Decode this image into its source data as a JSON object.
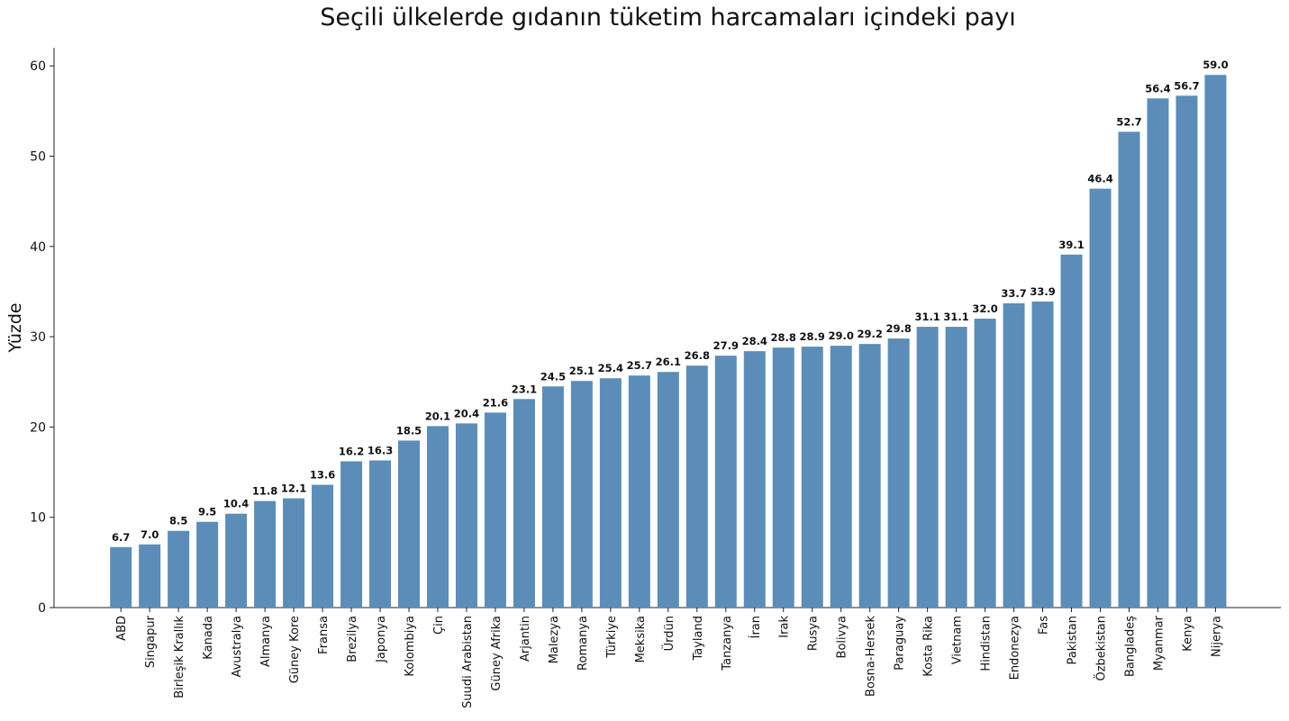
{
  "chart_data": {
    "type": "bar",
    "title": "Seçili ülkelerde gıdanın tüketim harcamaları içindeki payı",
    "xlabel": "",
    "ylabel": "Yüzde",
    "ylim": [
      0,
      62
    ],
    "yticks": [
      0,
      10,
      20,
      30,
      40,
      50,
      60
    ],
    "grid": false,
    "legend": "none",
    "bar_color": "#5b8db8",
    "categories": [
      "ABD",
      "Singapur",
      "Birleşik Krallık",
      "Kanada",
      "Avustralya",
      "Almanya",
      "Güney Kore",
      "Fransa",
      "Brezilya",
      "Japonya",
      "Kolombiya",
      "Çin",
      "Suudi Arabistan",
      "Güney Afrika",
      "Arjantin",
      "Malezya",
      "Romanya",
      "Türkiye",
      "Meksika",
      "Ürdün",
      "Tayland",
      "Tanzanya",
      "İran",
      "Irak",
      "Rusya",
      "Bolivya",
      "Bosna-Hersek",
      "Paraguay",
      "Kosta Rika",
      "Vietnam",
      "Hindistan",
      "Endonezya",
      "Fas",
      "Pakistan",
      "Özbekistan",
      "Bangladeş",
      "Myanmar",
      "Kenya",
      "Nijerya"
    ],
    "values": [
      6.7,
      7.0,
      8.5,
      9.5,
      10.4,
      11.8,
      12.1,
      13.6,
      16.2,
      16.3,
      18.5,
      20.1,
      20.4,
      21.6,
      23.1,
      24.5,
      25.1,
      25.4,
      25.7,
      26.1,
      26.8,
      27.9,
      28.4,
      28.8,
      28.9,
      29.0,
      29.2,
      29.8,
      31.1,
      31.1,
      32.0,
      33.7,
      33.9,
      39.1,
      46.4,
      52.7,
      56.4,
      56.7,
      59.0
    ],
    "value_labels": [
      "6.7",
      "7.0",
      "8.5",
      "9.5",
      "10.4",
      "11.8",
      "12.1",
      "13.6",
      "16.2",
      "16.3",
      "18.5",
      "20.1",
      "20.4",
      "21.6",
      "23.1",
      "24.5",
      "25.1",
      "25.4",
      "25.7",
      "26.1",
      "26.8",
      "27.9",
      "28.4",
      "28.8",
      "28.9",
      "29.0",
      "29.2",
      "29.8",
      "31.1",
      "31.1",
      "32.0",
      "33.7",
      "33.9",
      "39.1",
      "46.4",
      "52.7",
      "56.4",
      "56.7",
      "59.0"
    ]
  }
}
